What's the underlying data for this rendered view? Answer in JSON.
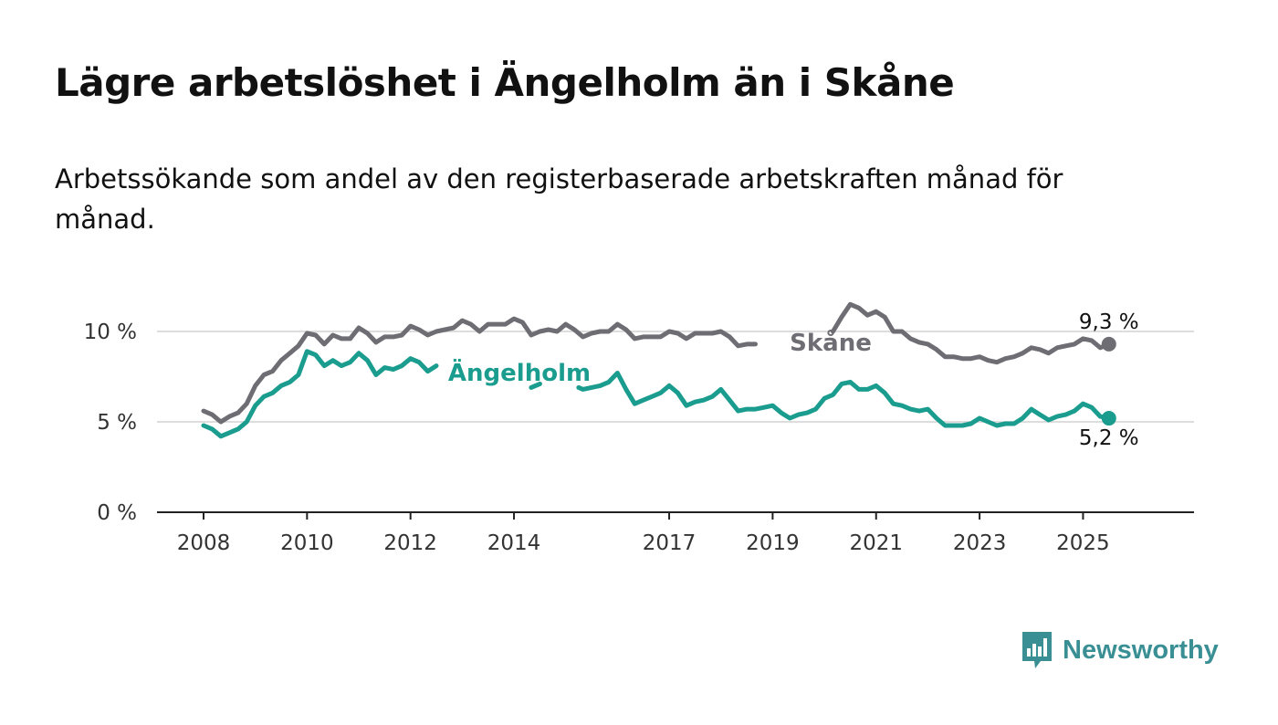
{
  "brand": {
    "name": "Newsworthy",
    "color": "#3a8f94"
  },
  "chart_data": {
    "type": "line",
    "title": "Lägre arbetslöshet i Ängelholm än i Skåne",
    "subtitle": "Arbetssökande som andel av den registerbaserade arbetskraften månad för månad.",
    "ylim": [
      0,
      10
    ],
    "yticks": [
      0,
      5,
      10
    ],
    "ytick_labels": [
      "0 %",
      "5 %",
      "10 %"
    ],
    "xlim": [
      "2008-01",
      "2026-05"
    ],
    "xticks": [
      "2008-01",
      "2010-01",
      "2012-01",
      "2014-01",
      "2017-01",
      "2019-01",
      "2021-01",
      "2023-01",
      "2025-01"
    ],
    "xtick_labels": [
      "2008",
      "2010",
      "2012",
      "2014",
      "2017",
      "2019",
      "2021",
      "2023",
      "2025"
    ],
    "grid": "horizontal",
    "series": [
      {
        "name": "Skåne",
        "color": "#6d6d73",
        "end_label": "9,3 %",
        "points": [
          [
            "2008-01",
            5.6
          ],
          [
            "2008-03",
            5.4
          ],
          [
            "2008-05",
            5.0
          ],
          [
            "2008-07",
            5.3
          ],
          [
            "2008-09",
            5.5
          ],
          [
            "2008-11",
            6.0
          ],
          [
            "2009-01",
            7.0
          ],
          [
            "2009-03",
            7.6
          ],
          [
            "2009-05",
            7.8
          ],
          [
            "2009-07",
            8.4
          ],
          [
            "2009-09",
            8.8
          ],
          [
            "2009-11",
            9.2
          ],
          [
            "2010-01",
            9.9
          ],
          [
            "2010-03",
            9.8
          ],
          [
            "2010-05",
            9.3
          ],
          [
            "2010-07",
            9.8
          ],
          [
            "2010-09",
            9.6
          ],
          [
            "2010-11",
            9.6
          ],
          [
            "2011-01",
            10.2
          ],
          [
            "2011-03",
            9.9
          ],
          [
            "2011-05",
            9.4
          ],
          [
            "2011-07",
            9.7
          ],
          [
            "2011-09",
            9.7
          ],
          [
            "2011-11",
            9.8
          ],
          [
            "2012-01",
            10.3
          ],
          [
            "2012-03",
            10.1
          ],
          [
            "2012-05",
            9.8
          ],
          [
            "2012-07",
            10.0
          ],
          [
            "2012-09",
            10.1
          ],
          [
            "2012-11",
            10.2
          ],
          [
            "2013-01",
            10.6
          ],
          [
            "2013-03",
            10.4
          ],
          [
            "2013-05",
            10.0
          ],
          [
            "2013-07",
            10.4
          ],
          [
            "2013-09",
            10.4
          ],
          [
            "2013-11",
            10.4
          ],
          [
            "2014-01",
            10.7
          ],
          [
            "2014-03",
            10.5
          ],
          [
            "2014-05",
            9.8
          ],
          [
            "2014-07",
            10.0
          ],
          [
            "2014-09",
            10.1
          ],
          [
            "2014-11",
            10.0
          ],
          [
            "2015-01",
            10.4
          ],
          [
            "2015-03",
            10.1
          ],
          [
            "2015-05",
            9.7
          ],
          [
            "2015-07",
            9.9
          ],
          [
            "2015-09",
            10.0
          ],
          [
            "2015-11",
            10.0
          ],
          [
            "2016-01",
            10.4
          ],
          [
            "2016-03",
            10.1
          ],
          [
            "2016-05",
            9.6
          ],
          [
            "2016-07",
            9.7
          ],
          [
            "2016-09",
            9.7
          ],
          [
            "2016-11",
            9.7
          ],
          [
            "2017-01",
            10.0
          ],
          [
            "2017-03",
            9.9
          ],
          [
            "2017-05",
            9.6
          ],
          [
            "2017-07",
            9.9
          ],
          [
            "2017-09",
            9.9
          ],
          [
            "2017-11",
            9.9
          ],
          [
            "2018-01",
            10.0
          ],
          [
            "2018-03",
            9.7
          ],
          [
            "2018-05",
            9.2
          ],
          [
            "2018-07",
            9.3
          ],
          [
            "2018-09",
            9.3
          ],
          [
            "2018-11",
            null
          ],
          [
            "2020-02",
            null
          ],
          [
            "2020-03",
            10.0
          ],
          [
            "2020-05",
            10.8
          ],
          [
            "2020-07",
            11.5
          ],
          [
            "2020-09",
            11.3
          ],
          [
            "2020-11",
            10.9
          ],
          [
            "2021-01",
            11.1
          ],
          [
            "2021-03",
            10.8
          ],
          [
            "2021-05",
            10.0
          ],
          [
            "2021-07",
            10.0
          ],
          [
            "2021-09",
            9.6
          ],
          [
            "2021-11",
            9.4
          ],
          [
            "2022-01",
            9.3
          ],
          [
            "2022-03",
            9.0
          ],
          [
            "2022-05",
            8.6
          ],
          [
            "2022-07",
            8.6
          ],
          [
            "2022-09",
            8.5
          ],
          [
            "2022-11",
            8.5
          ],
          [
            "2023-01",
            8.6
          ],
          [
            "2023-03",
            8.4
          ],
          [
            "2023-05",
            8.3
          ],
          [
            "2023-07",
            8.5
          ],
          [
            "2023-09",
            8.6
          ],
          [
            "2023-11",
            8.8
          ],
          [
            "2024-01",
            9.1
          ],
          [
            "2024-03",
            9.0
          ],
          [
            "2024-05",
            8.8
          ],
          [
            "2024-07",
            9.1
          ],
          [
            "2024-09",
            9.2
          ],
          [
            "2024-11",
            9.3
          ],
          [
            "2025-01",
            9.6
          ],
          [
            "2025-03",
            9.5
          ],
          [
            "2025-05",
            9.1
          ],
          [
            "2025-07",
            9.3
          ]
        ]
      },
      {
        "name": "Ängelholm",
        "color": "#1a9c8f",
        "end_label": "5,2 %",
        "points": [
          [
            "2008-01",
            4.8
          ],
          [
            "2008-03",
            4.6
          ],
          [
            "2008-05",
            4.2
          ],
          [
            "2008-07",
            4.4
          ],
          [
            "2008-09",
            4.6
          ],
          [
            "2008-11",
            5.0
          ],
          [
            "2009-01",
            5.9
          ],
          [
            "2009-03",
            6.4
          ],
          [
            "2009-05",
            6.6
          ],
          [
            "2009-07",
            7.0
          ],
          [
            "2009-09",
            7.2
          ],
          [
            "2009-11",
            7.6
          ],
          [
            "2010-01",
            8.9
          ],
          [
            "2010-03",
            8.7
          ],
          [
            "2010-05",
            8.1
          ],
          [
            "2010-07",
            8.4
          ],
          [
            "2010-09",
            8.1
          ],
          [
            "2010-11",
            8.3
          ],
          [
            "2011-01",
            8.8
          ],
          [
            "2011-03",
            8.4
          ],
          [
            "2011-05",
            7.6
          ],
          [
            "2011-07",
            8.0
          ],
          [
            "2011-09",
            7.9
          ],
          [
            "2011-11",
            8.1
          ],
          [
            "2012-01",
            8.5
          ],
          [
            "2012-03",
            8.3
          ],
          [
            "2012-05",
            7.8
          ],
          [
            "2012-07",
            8.1
          ],
          [
            "2012-09",
            null
          ],
          [
            "2014-04",
            null
          ],
          [
            "2014-05",
            6.9
          ],
          [
            "2014-07",
            7.1
          ],
          [
            "2014-09",
            null
          ],
          [
            "2015-03",
            null
          ],
          [
            "2015-04",
            6.9
          ],
          [
            "2015-05",
            6.8
          ],
          [
            "2015-07",
            6.9
          ],
          [
            "2015-09",
            7.0
          ],
          [
            "2015-11",
            7.2
          ],
          [
            "2016-01",
            7.7
          ],
          [
            "2016-03",
            6.8
          ],
          [
            "2016-05",
            6.0
          ],
          [
            "2016-07",
            6.2
          ],
          [
            "2016-09",
            6.4
          ],
          [
            "2016-11",
            6.6
          ],
          [
            "2017-01",
            7.0
          ],
          [
            "2017-03",
            6.6
          ],
          [
            "2017-05",
            5.9
          ],
          [
            "2017-07",
            6.1
          ],
          [
            "2017-09",
            6.2
          ],
          [
            "2017-11",
            6.4
          ],
          [
            "2018-01",
            6.8
          ],
          [
            "2018-03",
            6.2
          ],
          [
            "2018-05",
            5.6
          ],
          [
            "2018-07",
            5.7
          ],
          [
            "2018-09",
            5.7
          ],
          [
            "2018-11",
            5.8
          ],
          [
            "2019-01",
            5.9
          ],
          [
            "2019-03",
            5.5
          ],
          [
            "2019-05",
            5.2
          ],
          [
            "2019-07",
            5.4
          ],
          [
            "2019-09",
            5.5
          ],
          [
            "2019-11",
            5.7
          ],
          [
            "2020-01",
            6.3
          ],
          [
            "2020-03",
            6.5
          ],
          [
            "2020-05",
            7.1
          ],
          [
            "2020-07",
            7.2
          ],
          [
            "2020-09",
            6.8
          ],
          [
            "2020-11",
            6.8
          ],
          [
            "2021-01",
            7.0
          ],
          [
            "2021-03",
            6.6
          ],
          [
            "2021-05",
            6.0
          ],
          [
            "2021-07",
            5.9
          ],
          [
            "2021-09",
            5.7
          ],
          [
            "2021-11",
            5.6
          ],
          [
            "2022-01",
            5.7
          ],
          [
            "2022-03",
            5.2
          ],
          [
            "2022-05",
            4.8
          ],
          [
            "2022-07",
            4.8
          ],
          [
            "2022-09",
            4.8
          ],
          [
            "2022-11",
            4.9
          ],
          [
            "2023-01",
            5.2
          ],
          [
            "2023-03",
            5.0
          ],
          [
            "2023-05",
            4.8
          ],
          [
            "2023-07",
            4.9
          ],
          [
            "2023-09",
            4.9
          ],
          [
            "2023-11",
            5.2
          ],
          [
            "2024-01",
            5.7
          ],
          [
            "2024-03",
            5.4
          ],
          [
            "2024-05",
            5.1
          ],
          [
            "2024-07",
            5.3
          ],
          [
            "2024-09",
            5.4
          ],
          [
            "2024-11",
            5.6
          ],
          [
            "2025-01",
            6.0
          ],
          [
            "2025-03",
            5.8
          ],
          [
            "2025-05",
            5.3
          ],
          [
            "2025-07",
            5.2
          ]
        ]
      }
    ]
  }
}
